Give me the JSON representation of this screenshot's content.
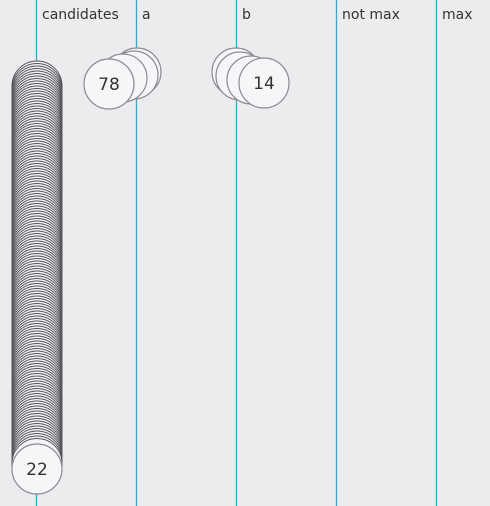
{
  "lanes": [
    {
      "id": "candidates",
      "label": "candidates"
    },
    {
      "id": "a",
      "label": "a"
    },
    {
      "id": "b",
      "label": "b"
    },
    {
      "id": "not_max",
      "label": "not max"
    },
    {
      "id": "max",
      "label": "max"
    }
  ],
  "nodes": [
    {
      "lane": "candidates",
      "value": "22",
      "stacked": true
    },
    {
      "lane": "a",
      "value": "78",
      "stacked": false
    },
    {
      "lane": "b",
      "value": "14",
      "stacked": false
    }
  ],
  "colors": {
    "lane_line": "#3aa7c2",
    "background": "#ececee",
    "circle_fill": "#f6f6f8",
    "circle_stroke": "#8a8a90",
    "stack_stroke": "#55555c"
  }
}
